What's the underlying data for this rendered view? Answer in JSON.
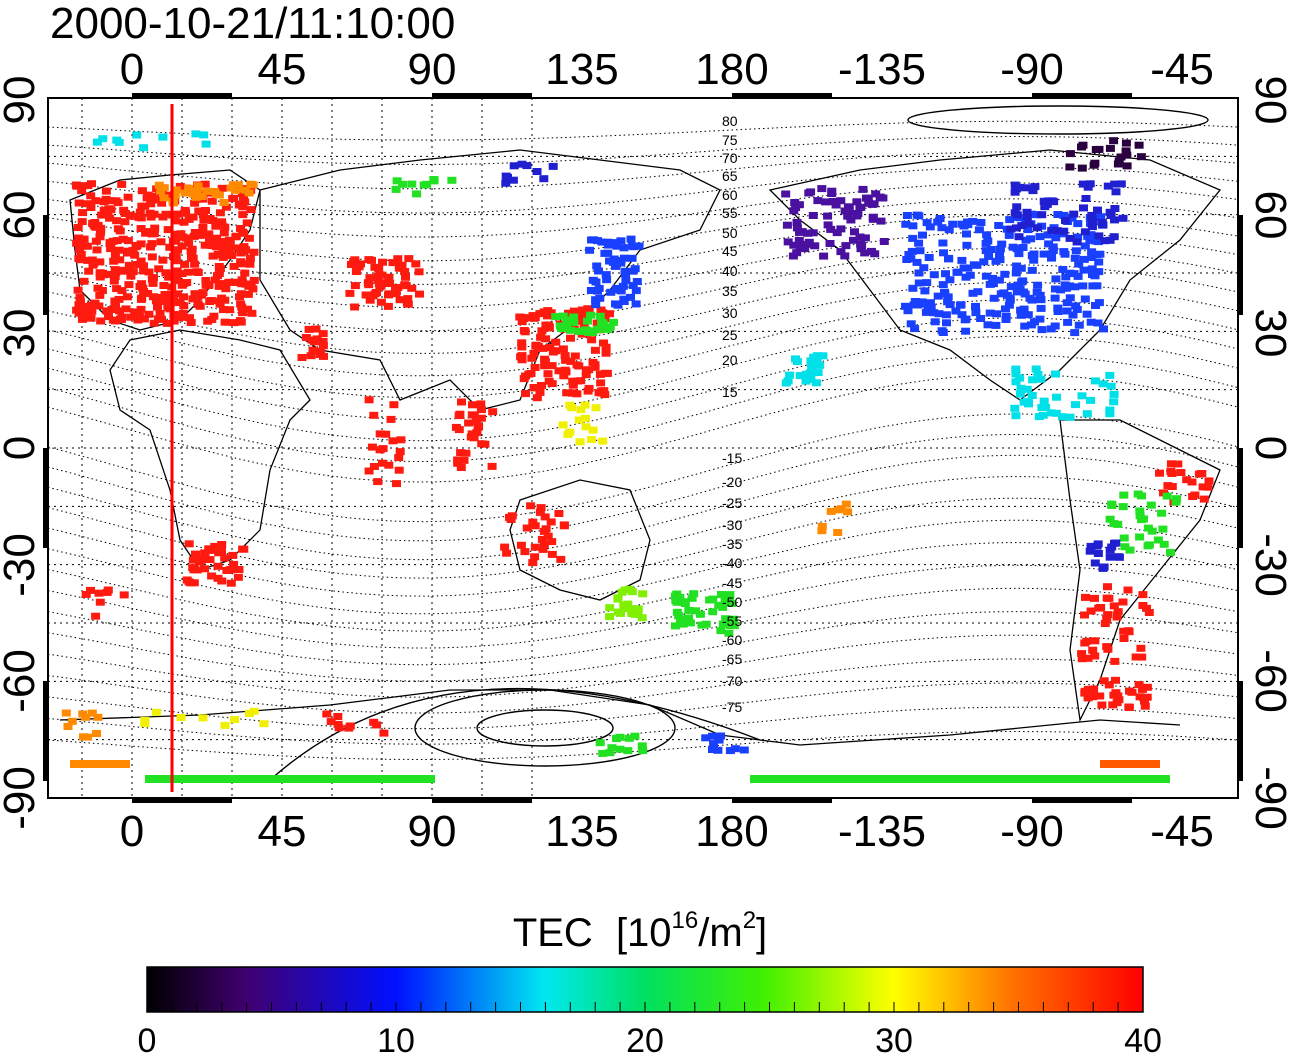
{
  "title": "2000-10-21/11:10:00",
  "map": {
    "top_lon_labels": [
      "0",
      "45",
      "90",
      "135",
      "180",
      "-135",
      "-90",
      "-45"
    ],
    "bottom_lon_labels": [
      "0",
      "45",
      "90",
      "135",
      "180",
      "-135",
      "-90",
      "-45"
    ],
    "lat_labels": [
      "90",
      "60",
      "30",
      "0",
      "-30",
      "-60",
      "-90"
    ],
    "contour_labels": [
      "80",
      "75",
      "70",
      "65",
      "60",
      "55",
      "50",
      "45",
      "40",
      "35",
      "30",
      "25",
      "20",
      "15",
      "-15",
      "-20",
      "-25",
      "-30",
      "-35",
      "-40",
      "-45",
      "-50",
      "-55",
      "-60",
      "-65",
      "-70",
      "-75"
    ],
    "terminator_lon": 10
  },
  "colorbar": {
    "title": "TEC",
    "unit_prefix": "[10",
    "unit_exp": "16",
    "unit_mid": "/m",
    "unit_exp2": "2",
    "unit_suffix": "]",
    "tick_labels": [
      "0",
      "10",
      "20",
      "30",
      "40"
    ],
    "range": [
      0,
      40
    ]
  },
  "colors": {
    "terminator": "#ff0000",
    "high_tec": "#ff1a10",
    "mid_tec": "#22e022",
    "low_tec": "#0a1ae0"
  }
}
